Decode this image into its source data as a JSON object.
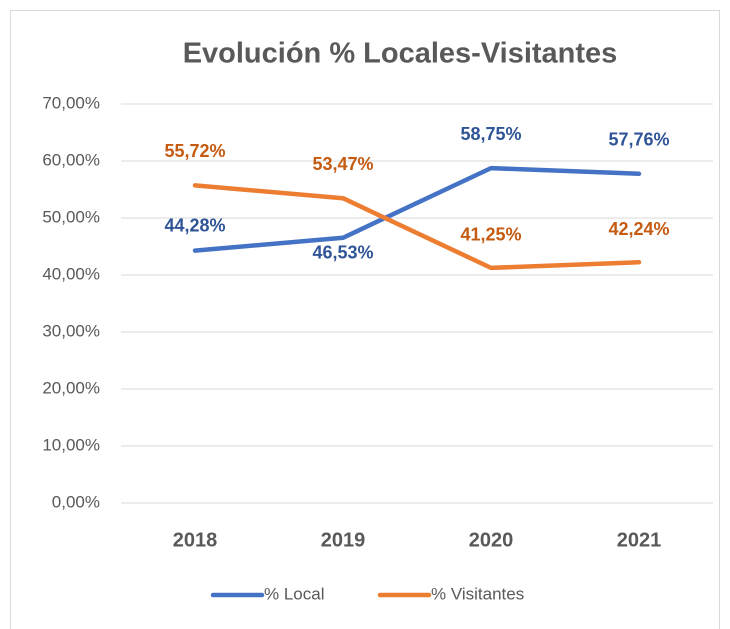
{
  "chart_data": {
    "type": "line",
    "title": "Evolución % Locales-Visitantes",
    "categories": [
      "2018",
      "2019",
      "2020",
      "2021"
    ],
    "series": [
      {
        "name": "% Local",
        "color": "#4472c4",
        "values": [
          44.28,
          46.53,
          58.75,
          57.76
        ],
        "value_labels": [
          "44,28%",
          "46,53%",
          "58,75%",
          "57,76%"
        ]
      },
      {
        "name": "% Visitantes",
        "color": "#ed7d31",
        "values": [
          55.72,
          53.47,
          41.25,
          42.24
        ],
        "value_labels": [
          "55,72%",
          "53,47%",
          "41,25%",
          "42,24%"
        ]
      }
    ],
    "ylim": [
      0,
      70
    ],
    "yticks": [
      {
        "value": 0,
        "label": "0,00%"
      },
      {
        "value": 10,
        "label": "10,00%"
      },
      {
        "value": 20,
        "label": "20,00%"
      },
      {
        "value": 30,
        "label": "30,00%"
      },
      {
        "value": 40,
        "label": "40,00%"
      },
      {
        "value": 50,
        "label": "50,00%"
      },
      {
        "value": 60,
        "label": "60,00%"
      },
      {
        "value": 70,
        "label": "70,00%"
      }
    ],
    "grid": true,
    "legend": "bottom"
  }
}
